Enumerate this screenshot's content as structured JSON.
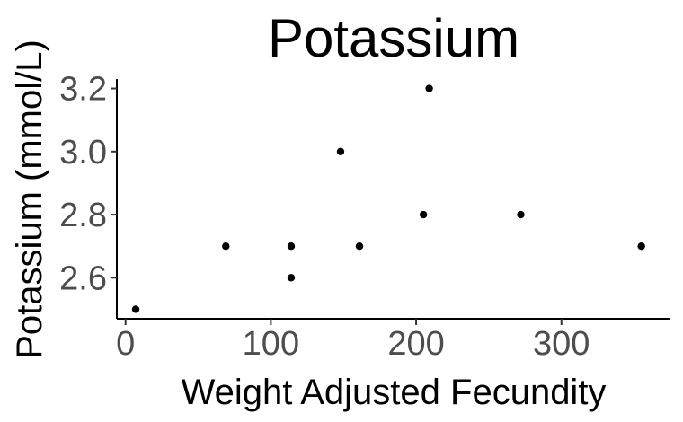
{
  "chart_data": {
    "type": "scatter",
    "title": "Potassium",
    "xlabel": "Weight Adjusted Fecundity",
    "ylabel": "Potassium (mmol/L)",
    "xlim": [
      -6,
      375
    ],
    "ylim": [
      2.47,
      3.23
    ],
    "xticks": [
      0,
      100,
      200,
      300
    ],
    "xtick_labels": [
      "0",
      "100",
      "200",
      "300"
    ],
    "yticks": [
      2.6,
      2.8,
      3.0,
      3.2
    ],
    "ytick_labels": [
      "2.6",
      "2.8",
      "3.0",
      "3.2"
    ],
    "grid": false,
    "legend": "none",
    "point_color": "#000000",
    "points": [
      {
        "x": 7,
        "y": 2.5
      },
      {
        "x": 69,
        "y": 2.7
      },
      {
        "x": 114,
        "y": 2.7
      },
      {
        "x": 114,
        "y": 2.6
      },
      {
        "x": 148,
        "y": 3.0
      },
      {
        "x": 161,
        "y": 2.7
      },
      {
        "x": 205,
        "y": 2.8
      },
      {
        "x": 209,
        "y": 3.2
      },
      {
        "x": 272,
        "y": 2.8
      },
      {
        "x": 355,
        "y": 2.7
      }
    ]
  }
}
